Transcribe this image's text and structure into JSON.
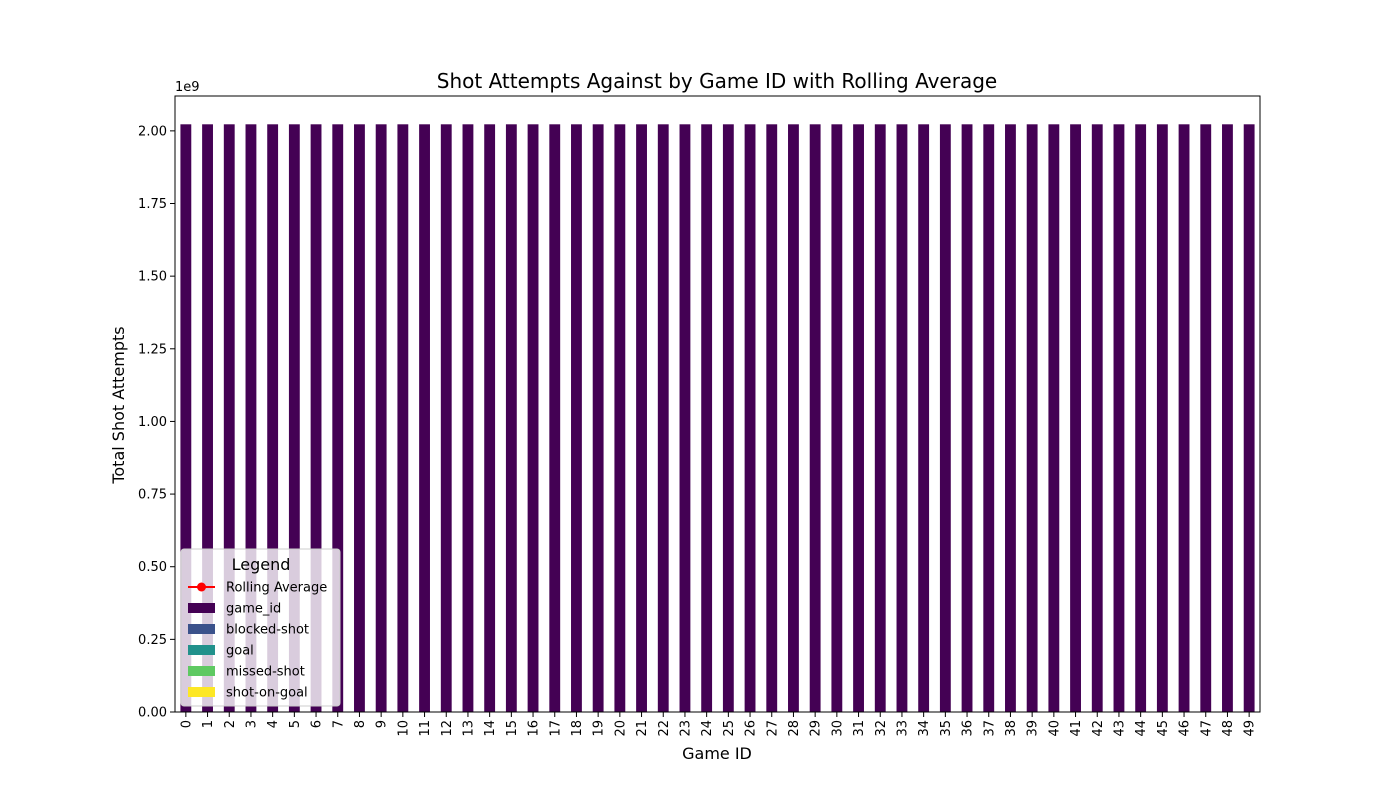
{
  "chart_data": {
    "type": "bar",
    "title": "Shot Attempts Against by Game ID with Rolling Average",
    "xlabel": "Game ID",
    "ylabel": "Total Shot Attempts",
    "y_offset_label": "1e9",
    "ylim": [
      0,
      2.12
    ],
    "y_ticks": [
      "0.00",
      "0.25",
      "0.50",
      "0.75",
      "1.00",
      "1.25",
      "1.50",
      "1.75",
      "2.00"
    ],
    "y_tick_values": [
      0,
      0.25,
      0.5,
      0.75,
      1.0,
      1.25,
      1.5,
      1.75,
      2.0
    ],
    "categories": [
      "0",
      "1",
      "2",
      "3",
      "4",
      "5",
      "6",
      "7",
      "8",
      "9",
      "10",
      "11",
      "12",
      "13",
      "14",
      "15",
      "16",
      "17",
      "18",
      "19",
      "20",
      "21",
      "22",
      "23",
      "24",
      "25",
      "26",
      "27",
      "28",
      "29",
      "30",
      "31",
      "32",
      "33",
      "34",
      "35",
      "36",
      "37",
      "38",
      "39",
      "40",
      "41",
      "42",
      "43",
      "44",
      "45",
      "46",
      "47",
      "48",
      "49"
    ],
    "series": [
      {
        "name": "game_id",
        "color": "#440154",
        "values": [
          2.0226,
          2.0226,
          2.0226,
          2.0226,
          2.0226,
          2.0226,
          2.0226,
          2.0226,
          2.0226,
          2.0226,
          2.0226,
          2.0226,
          2.0226,
          2.0226,
          2.0226,
          2.0226,
          2.0226,
          2.0226,
          2.0226,
          2.0226,
          2.0226,
          2.0226,
          2.0226,
          2.0226,
          2.0226,
          2.0226,
          2.0226,
          2.0226,
          2.0226,
          2.0226,
          2.0226,
          2.0226,
          2.0226,
          2.0226,
          2.0226,
          2.0226,
          2.0226,
          2.0226,
          2.0226,
          2.0226,
          2.0226,
          2.0226,
          2.0226,
          2.0226,
          2.0226,
          2.0226,
          2.0226,
          2.0226,
          2.0226,
          2.0226
        ]
      },
      {
        "name": "blocked-shot",
        "color": "#3b528b"
      },
      {
        "name": "goal",
        "color": "#21918c"
      },
      {
        "name": "missed-shot",
        "color": "#5ec962"
      },
      {
        "name": "shot-on-goal",
        "color": "#fde725"
      }
    ],
    "rolling_average": {
      "name": "Rolling Average",
      "color": "#ff0000"
    },
    "legend": {
      "title": "Legend",
      "placement": "lower-left",
      "entries": [
        "Rolling Average",
        "game_id",
        "blocked-shot",
        "goal",
        "missed-shot",
        "shot-on-goal"
      ]
    }
  }
}
